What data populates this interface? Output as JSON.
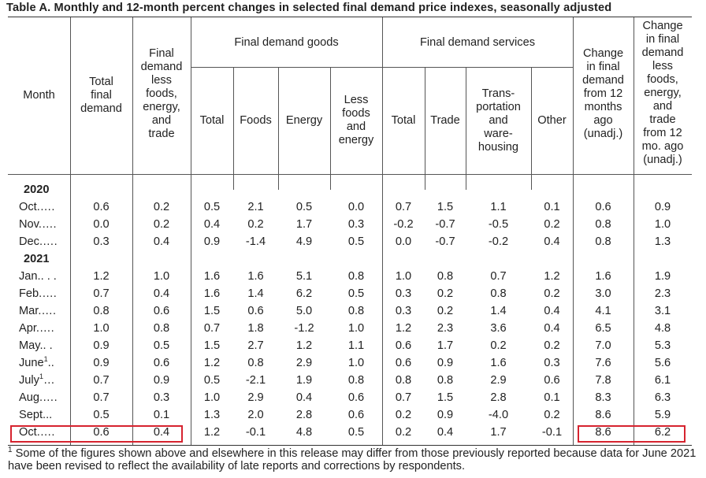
{
  "title": "Table A. Monthly and 12-month percent changes in selected final demand price indexes, seasonally adjusted",
  "headers": {
    "month": "Month",
    "total": "Total\nfinal\ndemand",
    "less": "Final\ndemand\nless\nfoods,\nenergy,\nand\ntrade",
    "goods_group": "Final demand goods",
    "services_group": "Final demand services",
    "g_total": "Total",
    "g_foods": "Foods",
    "g_energy": "Energy",
    "g_less": "Less\nfoods\nand\nenergy",
    "s_total": "Total",
    "s_trade": "Trade",
    "s_trans": "Trans-\nportation\nand\nware-\nhousing",
    "s_other": "Other",
    "chg12": "Change\nin final\ndemand\nfrom 12\nmonths\nago\n(unadj.)",
    "chg12_less": "Change\nin final\ndemand\nless\nfoods,\nenergy,\nand\ntrade\nfrom 12\nmo. ago\n(unadj.)"
  },
  "chart_data": {
    "type": "table",
    "columns": [
      "Month",
      "Total final demand",
      "Final demand less foods, energy, and trade",
      "Goods Total",
      "Goods Foods",
      "Goods Energy",
      "Goods Less foods and energy",
      "Services Total",
      "Services Trade",
      "Services Transportation and warehousing",
      "Services Other",
      "Change in final demand from 12 months ago (unadj.)",
      "Change in final demand less foods, energy, and trade from 12 mo. ago (unadj.)"
    ],
    "rows": [
      {
        "kind": "year",
        "label": "2020"
      },
      {
        "kind": "data",
        "label": "Oct.",
        "dots": "….",
        "values": [
          "0.6",
          "0.2",
          "0.5",
          "2.1",
          "0.5",
          "0.0",
          "0.7",
          "1.5",
          "1.1",
          "0.1",
          "0.6",
          "0.9"
        ]
      },
      {
        "kind": "data",
        "label": "Nov.",
        "dots": "….",
        "values": [
          "0.0",
          "0.2",
          "0.4",
          "0.2",
          "1.7",
          "0.3",
          "-0.2",
          "-0.7",
          "-0.5",
          "0.2",
          "0.8",
          "1.0"
        ]
      },
      {
        "kind": "data",
        "label": "Dec.",
        "dots": "….",
        "values": [
          "0.3",
          "0.4",
          "0.9",
          "-1.4",
          "4.9",
          "0.5",
          "0.0",
          "-0.7",
          "-0.2",
          "0.4",
          "0.8",
          "1.3"
        ]
      },
      {
        "kind": "year",
        "label": "2021"
      },
      {
        "kind": "data",
        "label": "Jan.",
        "dots": ". . .",
        "values": [
          "1.2",
          "1.0",
          "1.6",
          "1.6",
          "5.1",
          "0.8",
          "1.0",
          "0.8",
          "0.7",
          "1.2",
          "1.6",
          "1.9"
        ]
      },
      {
        "kind": "data",
        "label": "Feb.",
        "dots": "….",
        "values": [
          "0.7",
          "0.4",
          "1.6",
          "1.4",
          "6.2",
          "0.5",
          "0.3",
          "0.2",
          "0.8",
          "0.2",
          "3.0",
          "2.3"
        ]
      },
      {
        "kind": "data",
        "label": "Mar.",
        "dots": "….",
        "values": [
          "0.8",
          "0.6",
          "1.5",
          "0.6",
          "5.0",
          "0.8",
          "0.3",
          "0.2",
          "1.4",
          "0.4",
          "4.1",
          "3.1"
        ]
      },
      {
        "kind": "data",
        "label": "Apr.",
        "dots": "….",
        "values": [
          "1.0",
          "0.8",
          "0.7",
          "1.8",
          "-1.2",
          "1.0",
          "1.2",
          "2.3",
          "3.6",
          "0.4",
          "6.5",
          "4.8"
        ]
      },
      {
        "kind": "data",
        "label": "May.",
        "dots": ". .",
        "values": [
          "0.9",
          "0.5",
          "1.5",
          "2.7",
          "1.2",
          "1.1",
          "0.6",
          "1.7",
          "0.2",
          "0.2",
          "7.0",
          "5.3"
        ]
      },
      {
        "kind": "data",
        "label": "June",
        "sup": "1",
        "dots": "..",
        "values": [
          "0.9",
          "0.6",
          "1.2",
          "0.8",
          "2.9",
          "1.0",
          "0.6",
          "0.9",
          "1.6",
          "0.3",
          "7.6",
          "5.6"
        ]
      },
      {
        "kind": "data",
        "label": "July",
        "sup": "1",
        "dots": "…",
        "values": [
          "0.7",
          "0.9",
          "0.5",
          "-2.1",
          "1.9",
          "0.8",
          "0.8",
          "0.8",
          "2.9",
          "0.6",
          "7.8",
          "6.1"
        ]
      },
      {
        "kind": "data",
        "label": "Aug.",
        "dots": "….",
        "values": [
          "0.7",
          "0.3",
          "1.0",
          "2.9",
          "0.4",
          "0.6",
          "0.7",
          "1.5",
          "2.8",
          "0.1",
          "8.3",
          "6.3"
        ]
      },
      {
        "kind": "data",
        "label": "Sept.",
        "dots": "..",
        "values": [
          "0.5",
          "0.1",
          "1.3",
          "2.0",
          "2.8",
          "0.6",
          "0.2",
          "0.9",
          "-4.0",
          "0.2",
          "8.6",
          "5.9"
        ]
      },
      {
        "kind": "data",
        "label": "Oct.",
        "dots": "….",
        "values": [
          "0.6",
          "0.4",
          "1.2",
          "-0.1",
          "4.8",
          "0.5",
          "0.2",
          "0.4",
          "1.7",
          "-0.1",
          "8.6",
          "6.2"
        ]
      }
    ],
    "highlight": {
      "row_label": "Oct. 2021",
      "columns": [
        "Total final demand",
        "Final demand less foods, energy, and trade",
        "Change in final demand from 12 months ago (unadj.)",
        "Change in final demand less foods, energy, and trade from 12 mo. ago (unadj.)"
      ],
      "color": "#d6232f"
    }
  },
  "footnote": {
    "marker": "1",
    "text": "Some of the figures shown above and elsewhere in this release may differ from those previously reported because data for June 2021 have been revised to reflect the availability of late reports and corrections by respondents."
  }
}
